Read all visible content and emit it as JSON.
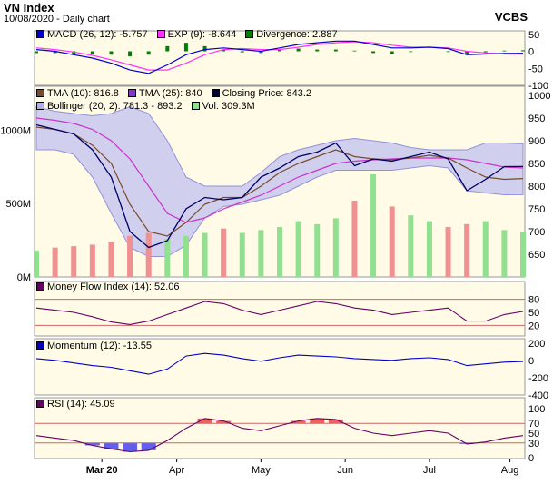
{
  "header": {
    "title": "VN Index",
    "subtitle": "10/08/2020 - Daily chart",
    "brand": "VCBS"
  },
  "colors": {
    "panel_bg": "#fffbe6",
    "price_line": "#000066",
    "tma10": "#7a4a2a",
    "tma25": "#cc33cc",
    "bollinger_fill": "#c8c8f0",
    "bollinger_edge": "#8080d8",
    "vol_up": "#90e090",
    "vol_down": "#f09090",
    "macd": "#0000cc",
    "exp": "#ff33ff",
    "divergence": "#008000",
    "mfi": "#660066",
    "momentum": "#0000cc",
    "rsi": "#660066",
    "rsi_over": "#f06060",
    "rsi_under": "#6060f0",
    "guide": "#cc6666"
  },
  "legends": {
    "macd": [
      {
        "label": "MACD (26, 12): -5.757",
        "swatch": "#0000cc"
      },
      {
        "label": "EXP (9): -8.644",
        "swatch": "#ff33ff"
      },
      {
        "label": "Divergence: 2.887",
        "swatch": "#008000"
      }
    ],
    "price": [
      {
        "label": "TMA (10): 816.8",
        "swatch": "#7a4a2a"
      },
      {
        "label": "TMA (25): 840",
        "swatch": "#8833cc"
      },
      {
        "label": "Closing Price: 843.2",
        "swatch": "#000033"
      },
      {
        "label": "Bollinger (20, 2): 781.3 - 893.2",
        "swatch": "#b0b0f0"
      },
      {
        "label": "Vol: 309.3M",
        "swatch": "#90e090"
      }
    ],
    "mfi": [
      {
        "label": "Money Flow Index (14): 52.06",
        "swatch": "#660066"
      }
    ],
    "momentum": [
      {
        "label": "Momentum (12): -13.55",
        "swatch": "#0000cc"
      }
    ],
    "rsi": [
      {
        "label": "RSI (14): 45.09",
        "swatch": "#660066"
      }
    ]
  },
  "axes": {
    "macd_ticks": [
      "50",
      "0",
      "-50",
      "-100"
    ],
    "price_ticks": [
      "1000",
      "950",
      "900",
      "850",
      "800",
      "750",
      "700",
      "650"
    ],
    "volume_ticks": [
      "1000M",
      "500M",
      "0M"
    ],
    "mfi_ticks": [
      "80",
      "50",
      "20"
    ],
    "momentum_ticks": [
      "200",
      "0",
      "-200",
      "-400"
    ],
    "rsi_ticks": [
      "100",
      "70",
      "50",
      "30",
      "0"
    ],
    "x_labels": [
      "Mar 20",
      "Apr",
      "May",
      "Jun",
      "Jul",
      "Aug"
    ]
  },
  "chart_data": {
    "type": "line",
    "x_axis_months": [
      "Mar 20",
      "Apr",
      "May",
      "Jun",
      "Jul",
      "Aug"
    ],
    "closing_price": {
      "x": [
        "2020-02-13",
        "2020-02-20",
        "2020-02-27",
        "2020-03-05",
        "2020-03-12",
        "2020-03-19",
        "2020-03-26",
        "2020-04-02",
        "2020-04-09",
        "2020-04-16",
        "2020-04-23",
        "2020-04-30",
        "2020-05-08",
        "2020-05-15",
        "2020-05-22",
        "2020-05-29",
        "2020-06-05",
        "2020-06-12",
        "2020-06-19",
        "2020-06-26",
        "2020-07-03",
        "2020-07-10",
        "2020-07-17",
        "2020-07-24",
        "2020-07-31",
        "2020-08-07",
        "2020-08-10"
      ],
      "values": [
        935,
        925,
        915,
        880,
        820,
        700,
        665,
        680,
        750,
        775,
        770,
        775,
        820,
        840,
        865,
        875,
        895,
        845,
        860,
        855,
        865,
        875,
        860,
        790,
        815,
        843,
        843.2
      ]
    },
    "tma10": [
      930,
      925,
      915,
      890,
      850,
      760,
      700,
      690,
      720,
      760,
      775,
      775,
      800,
      830,
      850,
      865,
      880,
      865,
      860,
      858,
      862,
      868,
      862,
      840,
      820,
      815,
      816.8
    ],
    "tma25": [
      950,
      945,
      938,
      925,
      900,
      860,
      800,
      740,
      720,
      730,
      750,
      765,
      780,
      800,
      820,
      835,
      850,
      855,
      858,
      860,
      862,
      862,
      862,
      858,
      850,
      842,
      840
    ],
    "bollinger_upper": [
      975,
      965,
      960,
      955,
      960,
      975,
      960,
      900,
      820,
      800,
      800,
      800,
      830,
      865,
      880,
      890,
      900,
      905,
      900,
      895,
      885,
      880,
      880,
      880,
      895,
      895,
      893.2
    ],
    "bollinger_lower": [
      880,
      880,
      870,
      820,
      740,
      665,
      645,
      645,
      670,
      730,
      755,
      760,
      770,
      780,
      800,
      820,
      835,
      835,
      835,
      835,
      840,
      845,
      840,
      790,
      785,
      781,
      781.3
    ],
    "volume_millions": [
      180,
      200,
      210,
      220,
      240,
      280,
      300,
      260,
      280,
      300,
      330,
      300,
      320,
      340,
      380,
      360,
      400,
      520,
      700,
      480,
      420,
      380,
      340,
      360,
      380,
      320,
      309.3
    ],
    "macd": [
      5,
      0,
      -10,
      -20,
      -35,
      -55,
      -65,
      -40,
      -10,
      5,
      10,
      5,
      0,
      10,
      20,
      25,
      30,
      30,
      20,
      10,
      10,
      12,
      8,
      -10,
      -8,
      -6,
      -5.757
    ],
    "macd_exp": [
      10,
      5,
      -2,
      -12,
      -25,
      -40,
      -55,
      -55,
      -35,
      -10,
      5,
      8,
      5,
      5,
      12,
      20,
      25,
      28,
      25,
      18,
      12,
      12,
      10,
      0,
      -5,
      -8,
      -8.644
    ],
    "divergence": [
      -5,
      -5,
      -8,
      -8,
      -10,
      -15,
      -10,
      15,
      25,
      15,
      5,
      -3,
      -5,
      5,
      8,
      5,
      5,
      2,
      -5,
      -8,
      -2,
      0,
      -2,
      -10,
      -3,
      2,
      2.887
    ],
    "money_flow_index": [
      60,
      55,
      50,
      40,
      28,
      22,
      30,
      45,
      60,
      75,
      70,
      55,
      45,
      55,
      65,
      75,
      70,
      60,
      55,
      45,
      50,
      55,
      60,
      30,
      30,
      45,
      52.06
    ],
    "momentum": [
      20,
      0,
      -30,
      -60,
      -80,
      -120,
      -160,
      -100,
      50,
      80,
      60,
      20,
      -10,
      30,
      60,
      50,
      40,
      20,
      10,
      0,
      20,
      30,
      10,
      -60,
      -40,
      -20,
      -13.55
    ],
    "rsi": [
      45,
      40,
      35,
      25,
      18,
      12,
      15,
      35,
      60,
      80,
      75,
      60,
      55,
      65,
      75,
      80,
      78,
      60,
      50,
      45,
      50,
      55,
      50,
      28,
      32,
      40,
      45.09
    ],
    "price_ylim": [
      600,
      1000
    ],
    "volume_ylim": [
      0,
      1300
    ],
    "macd_ylim": [
      -100,
      60
    ],
    "mfi_ylim": [
      0,
      100
    ],
    "momentum_ylim": [
      -400,
      250
    ],
    "rsi_ylim": [
      0,
      100
    ],
    "guides": {
      "mfi": [
        80,
        20
      ],
      "rsi": [
        70,
        30
      ]
    }
  }
}
